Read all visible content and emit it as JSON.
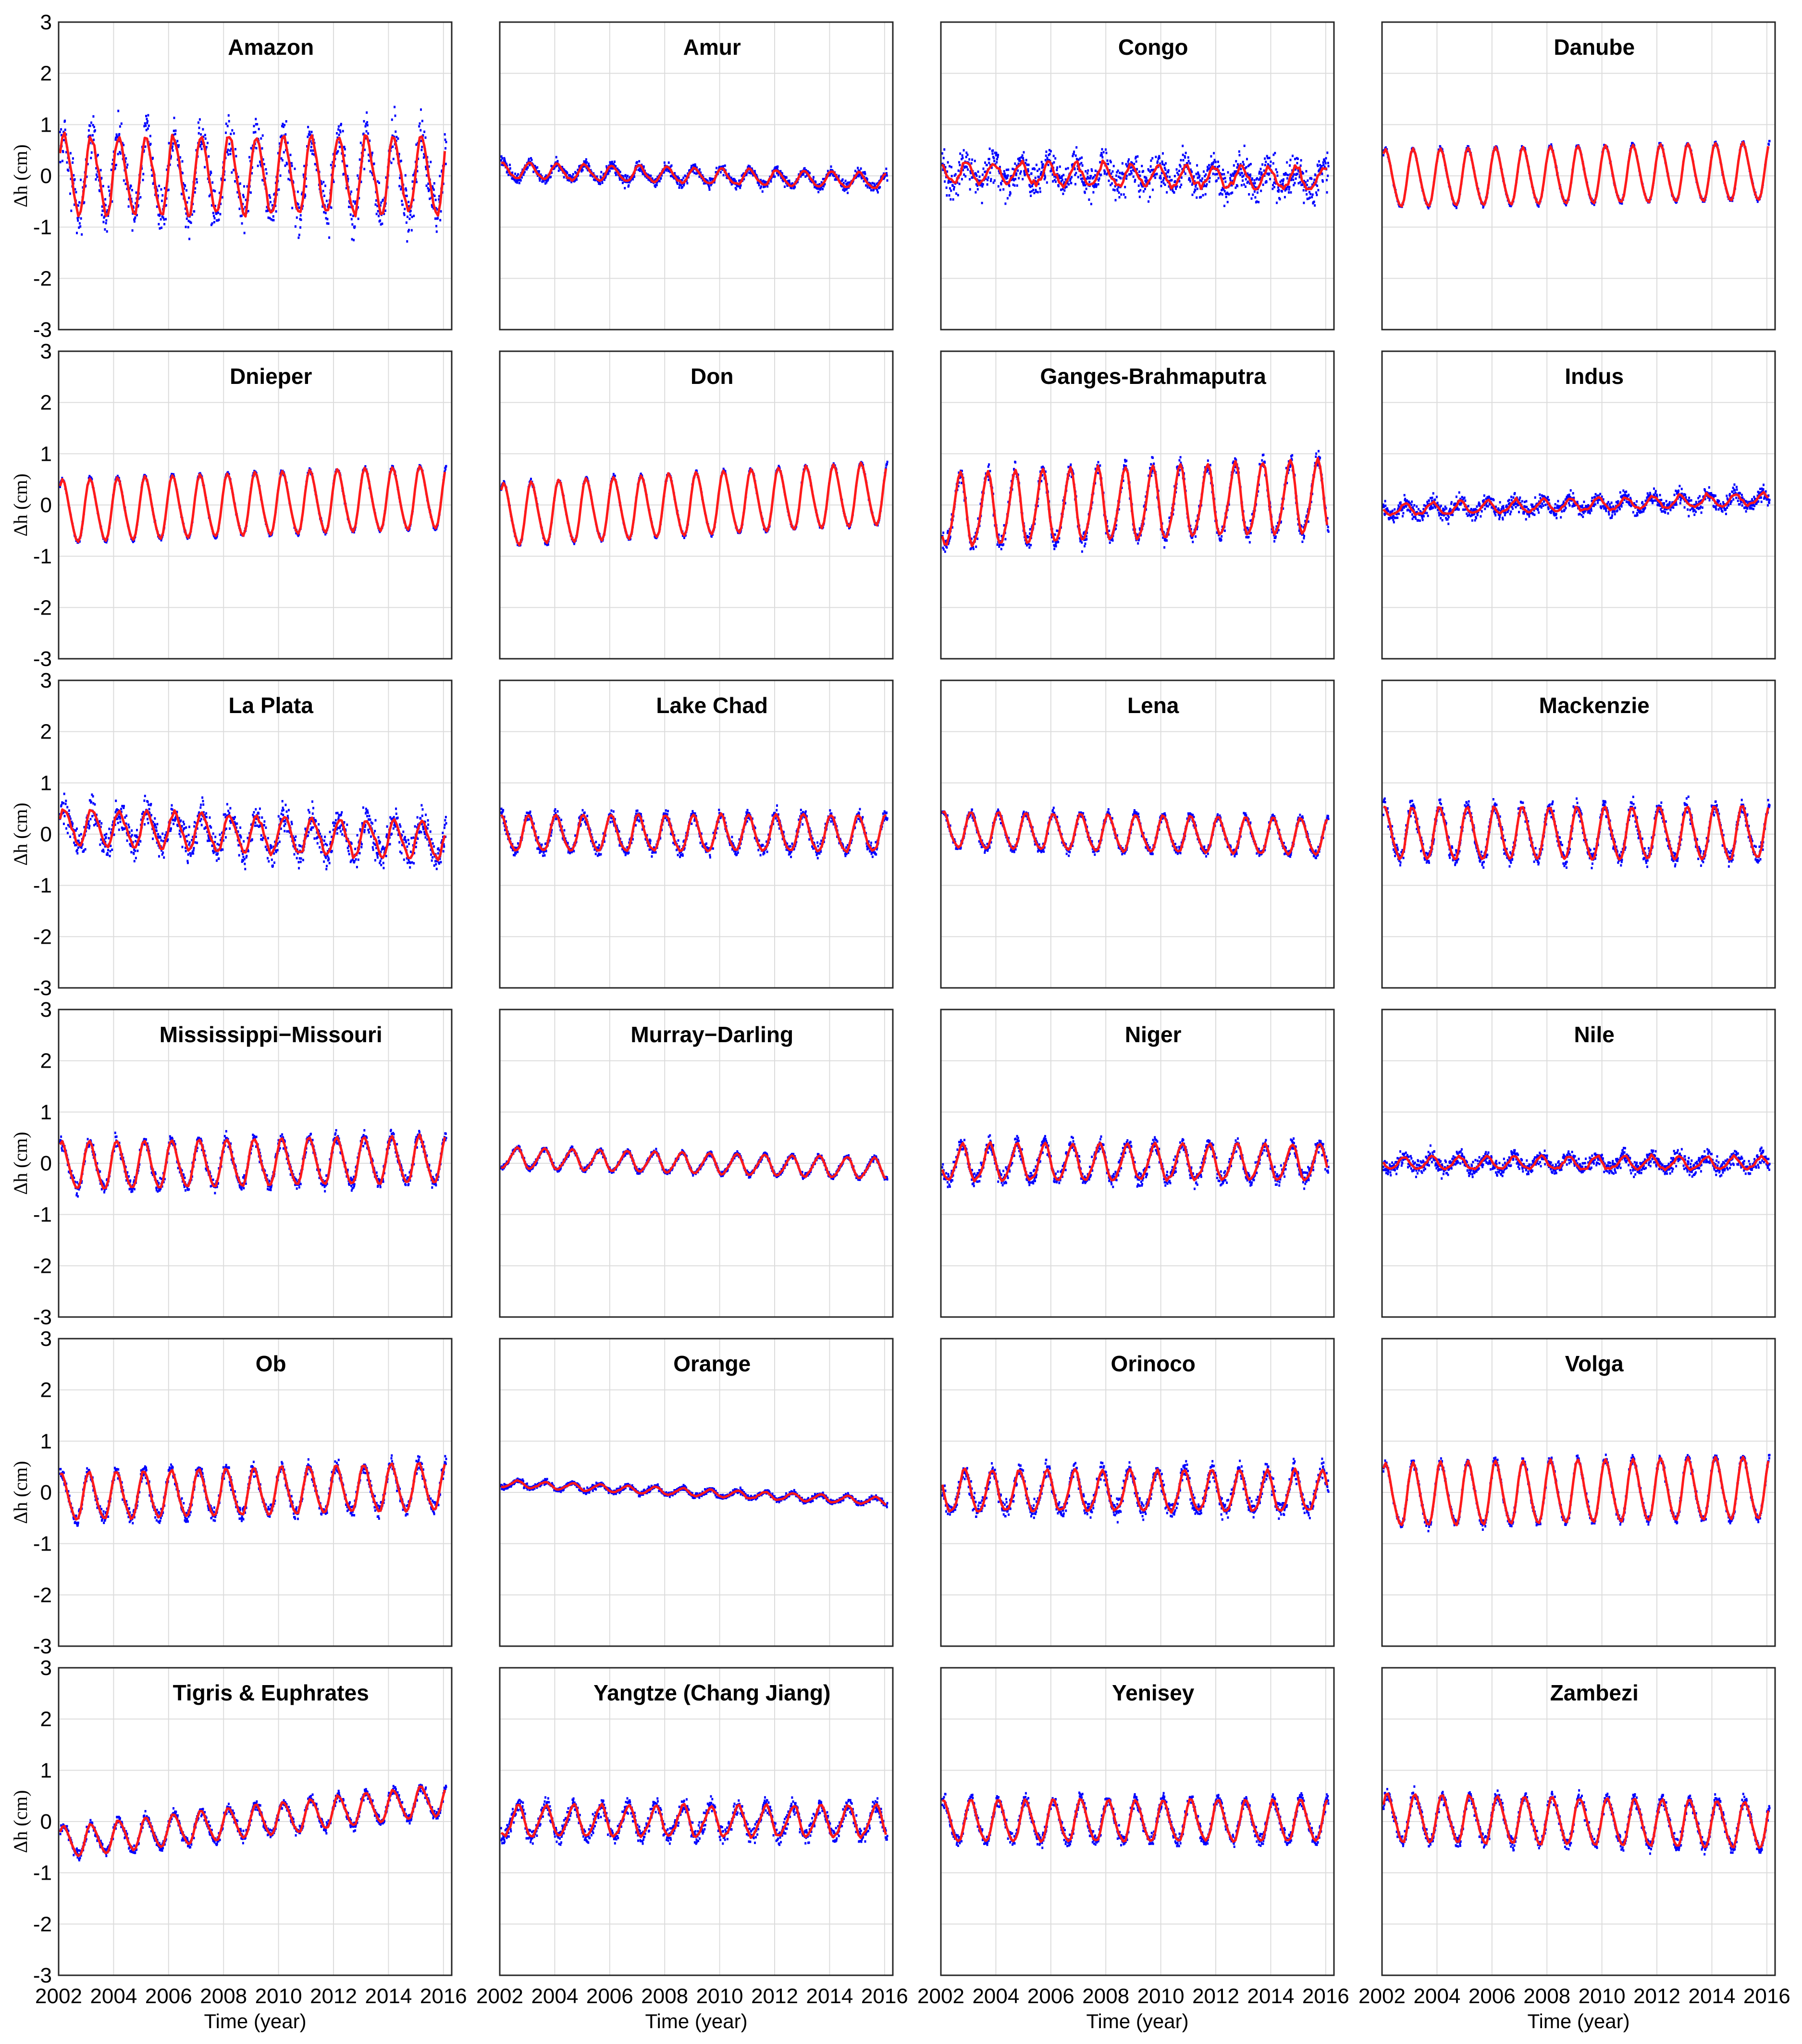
{
  "chart_data": {
    "type": "scatter",
    "description_of_marks": "blue dots = daily series, red line = monthly series",
    "x_axis": {
      "label": "Time (year)",
      "range": [
        2002,
        2016.3
      ],
      "ticks": [
        2002,
        2004,
        2006,
        2008,
        2010,
        2012,
        2014,
        2016
      ]
    },
    "y_axis": {
      "label": "Δh (cm)",
      "range": [
        -3,
        3
      ],
      "ticks": [
        -3,
        -2,
        -1,
        0,
        1,
        2,
        3
      ]
    },
    "series_colors": {
      "daily": "#0000ff",
      "monthly": "#ff1a1a"
    },
    "panels": [
      {
        "title": "Amazon",
        "amp": 0.75,
        "noise": 0.55,
        "trend": 0.0,
        "phase": 0.2
      },
      {
        "title": "Amur",
        "amp": 0.15,
        "noise": 0.12,
        "trend": -0.015,
        "phase": 1.0
      },
      {
        "title": "Congo",
        "amp": 0.2,
        "noise": 0.4,
        "trend": -0.01,
        "phase": 2.0
      },
      {
        "title": "Danube",
        "amp": 0.55,
        "noise": 0.05,
        "trend": 0.01,
        "phase": 0.6
      },
      {
        "title": "Dnieper",
        "amp": 0.6,
        "noise": 0.05,
        "trend": 0.02,
        "phase": 0.5
      },
      {
        "title": "Don",
        "amp": 0.6,
        "noise": 0.05,
        "trend": 0.03,
        "phase": 0.5
      },
      {
        "title": "Ganges-Brahmaputra",
        "amp": 0.7,
        "noise": 0.2,
        "trend": 0.02,
        "phase": 3.5
      },
      {
        "title": "Indus",
        "amp": 0.12,
        "noise": 0.18,
        "trend": 0.015,
        "phase": 2.5
      },
      {
        "title": "La Plata",
        "amp": 0.35,
        "noise": 0.35,
        "trend": -0.02,
        "phase": 0.1
      },
      {
        "title": "Lake Chad",
        "amp": 0.35,
        "noise": 0.15,
        "trend": 0.0,
        "phase": 1.2
      },
      {
        "title": "Lena",
        "amp": 0.35,
        "noise": 0.1,
        "trend": -0.01,
        "phase": 0.9
      },
      {
        "title": "Mackenzie",
        "amp": 0.5,
        "noise": 0.2,
        "trend": 0.0,
        "phase": 0.8
      },
      {
        "title": "Mississippi−Missouri",
        "amp": 0.45,
        "noise": 0.15,
        "trend": 0.01,
        "phase": 0.7
      },
      {
        "title": "Murray−Darling",
        "amp": 0.2,
        "noise": 0.06,
        "trend": -0.015,
        "phase": 4.0
      },
      {
        "title": "Niger",
        "amp": 0.35,
        "noise": 0.18,
        "trend": 0.0,
        "phase": 3.0
      },
      {
        "title": "Nile",
        "amp": 0.12,
        "noise": 0.18,
        "trend": 0.0,
        "phase": 2.8
      },
      {
        "title": "Ob",
        "amp": 0.45,
        "noise": 0.15,
        "trend": 0.015,
        "phase": 0.8
      },
      {
        "title": "Orange",
        "amp": 0.07,
        "noise": 0.06,
        "trend": -0.025,
        "phase": 3.8
      },
      {
        "title": "Orinoco",
        "amp": 0.4,
        "noise": 0.2,
        "trend": 0.0,
        "phase": 2.4
      },
      {
        "title": "Volga",
        "amp": 0.6,
        "noise": 0.1,
        "trend": 0.01,
        "phase": 0.6
      },
      {
        "title": "Tigris & Euphrates",
        "amp": 0.3,
        "noise": 0.12,
        "trend": 0.06,
        "phase": 0.3
      },
      {
        "title": "Yangtze (Chang Jiang)",
        "amp": 0.3,
        "noise": 0.2,
        "trend": 0.0,
        "phase": 3.6
      },
      {
        "title": "Yenisey",
        "amp": 0.4,
        "noise": 0.15,
        "trend": 0.0,
        "phase": 0.9
      },
      {
        "title": "Zambezi",
        "amp": 0.45,
        "noise": 0.15,
        "trend": -0.01,
        "phase": 0.2
      }
    ]
  }
}
